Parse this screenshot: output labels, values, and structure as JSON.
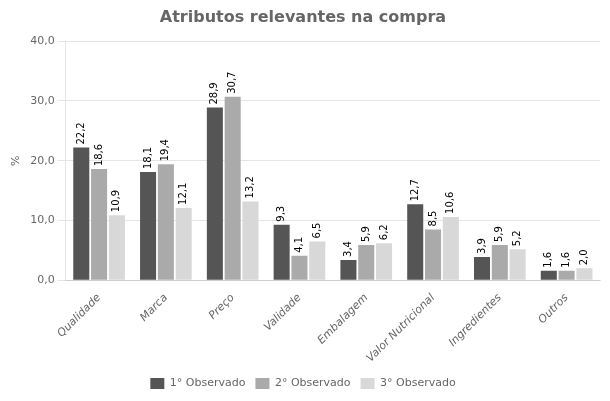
{
  "chart_data": {
    "type": "bar",
    "title": "Atributos relevantes na compra",
    "y_label": "%",
    "categories": [
      "Qualidade",
      "Marca",
      "Preço",
      "Validade",
      "Embalagem",
      "Valor Nutricional",
      "Ingredientes",
      "Outros"
    ],
    "series": [
      {
        "name": "1° Observado",
        "color": "#555555",
        "values": [
          22.2,
          18.1,
          28.9,
          9.3,
          3.4,
          12.7,
          3.9,
          1.6
        ],
        "value_labels": [
          "22,2",
          "18,1",
          "28,9",
          "9,3",
          "3,4",
          "12,7",
          "3,9",
          "1,6"
        ]
      },
      {
        "name": "2° Observado",
        "color": "#aaaaaa",
        "values": [
          18.6,
          19.4,
          30.7,
          4.1,
          5.9,
          8.5,
          5.9,
          1.6
        ],
        "value_labels": [
          "18,6",
          "19,4",
          "30,7",
          "4,1",
          "5,9",
          "8,5",
          "5,9",
          "1,6"
        ]
      },
      {
        "name": "3° Observado",
        "color": "#d8d8d8",
        "values": [
          10.9,
          12.1,
          13.2,
          6.5,
          6.2,
          10.6,
          5.2,
          2.0
        ],
        "value_labels": [
          "10,9",
          "12,1",
          "13,2",
          "6,5",
          "6,2",
          "10,6",
          "5,2",
          "2,0"
        ]
      }
    ],
    "ylim": [
      0,
      40
    ],
    "yticks": [
      {
        "value": 0,
        "label": "0,0"
      },
      {
        "value": 10,
        "label": "10,0"
      },
      {
        "value": 20,
        "label": "20,0"
      },
      {
        "value": 30,
        "label": "30,0"
      },
      {
        "value": 40,
        "label": "40,0"
      }
    ],
    "grid": true,
    "legend": "bottom",
    "data_labels": true
  }
}
